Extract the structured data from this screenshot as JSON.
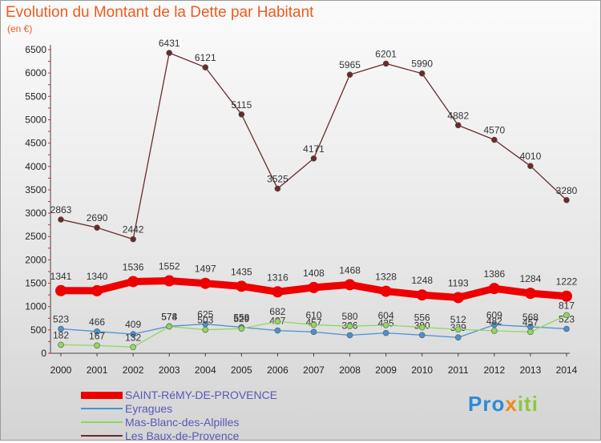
{
  "title": "Evolution du Montant de la Dette par Habitant",
  "unit_label": "(en €)",
  "logo": {
    "text": "Proxiti",
    "colors": [
      "#2e8ad8",
      "#f08a14",
      "#8cc83c"
    ]
  },
  "chart_data": {
    "type": "line",
    "title": "Evolution du Montant de la Dette par Habitant",
    "ylabel": "(en €)",
    "xlabel": "",
    "categories": [
      "2000",
      "2001",
      "2002",
      "2003",
      "2004",
      "2005",
      "2006",
      "2007",
      "2008",
      "2009",
      "2010",
      "2011",
      "2012",
      "2013",
      "2014"
    ],
    "ylim": [
      0,
      6500
    ],
    "yticks": [
      0,
      500,
      1000,
      1500,
      2000,
      2500,
      3000,
      3500,
      4000,
      4500,
      5000,
      5500,
      6000,
      6500
    ],
    "grid": false,
    "legend_placement": "bottom-left",
    "series": [
      {
        "name": "SAINT-RéMY-DE-PROVENCE",
        "color": "#ee0000",
        "emphasis": true,
        "values": [
          1341,
          1340,
          1536,
          1552,
          1497,
          1435,
          1316,
          1408,
          1468,
          1328,
          1248,
          1193,
          1386,
          1284,
          1222
        ]
      },
      {
        "name": "Eyragues",
        "color": "#4a90d0",
        "values": [
          523,
          466,
          409,
          578,
          625,
          558,
          487,
          457,
          386,
          435,
          390,
          339,
          609,
          568,
          523
        ]
      },
      {
        "name": "Mas-Blanc-des-Alpilles",
        "color": "#8fd860",
        "values": [
          182,
          167,
          132,
          574,
          503,
          529,
          682,
          610,
          580,
          604,
          556,
          512,
          482,
          457,
          817
        ]
      },
      {
        "name": "Les Baux-de-Provence",
        "color": "#6b2b2b",
        "values": [
          2863,
          2690,
          2442,
          6431,
          6121,
          5115,
          3525,
          4171,
          5965,
          6201,
          5990,
          4882,
          4570,
          4010,
          3280
        ]
      }
    ]
  }
}
